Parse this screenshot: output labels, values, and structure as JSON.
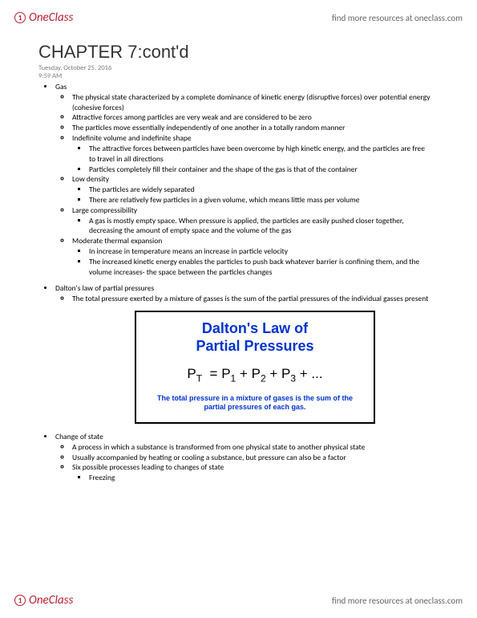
{
  "header": {
    "brand": "OneClass",
    "link_text": "find more resources at oneclass.com"
  },
  "title": "CHAPTER 7:cont'd",
  "meta": {
    "date": "Tuesday, October 25, 2016",
    "time": "9:59 AM"
  },
  "gas": {
    "heading": "Gas",
    "def": "The physical state characterized by a complete dominance of kinetic energy (disruptive forces) over potential energy (cohesive forces)",
    "attractive": "Attractive forces among particles are very weak and are considered to be zero",
    "move": "The particles move essentially independently of one another in a totally random manner",
    "indef_heading": "Indefinite volume and indefinite shape",
    "indef_a": "The attractive forces between particles have been overcome by high kinetic energy, and the particles are free to travel in all directions",
    "indef_b": "Particles completely fill their container and the shape of the gas is that of the container",
    "lowd_heading": "Low density",
    "lowd_a": "The particles are widely separated",
    "lowd_b": "There are relatively few particles in a given volume, which means little mass per volume",
    "comp_heading": "Large compressibility",
    "comp_a": "A gas is mostly empty space. When pressure is applied, the particles are easily pushed closer together, decreasing the amount of empty space and the volume of the gas",
    "therm_heading": "Moderate thermal expansion",
    "therm_a": "In increase in temperature means an increase in particle velocity",
    "therm_b": "The increased kinetic energy enables the particles to push back whatever barrier is confining them, and the volume increases- the space between the particles changes"
  },
  "dalton": {
    "heading": "Dalton's law of partial pressures",
    "desc": "The total pressure exerted by a mixture of gasses is the sum of the partial pressures of the individual gasses present",
    "card": {
      "title_l1": "Dalton's Law of",
      "title_l2": "Partial Pressures",
      "eq_html": "P<sub>T</sub>&nbsp;&nbsp;= P<sub>1</sub> + P<sub>2</sub> + P<sub>3</sub> + ...",
      "caption": "The total pressure in a mixture of gases is the sum of the partial pressures of each gas."
    }
  },
  "change": {
    "heading": "Change of state",
    "a": "A process in which  a substance is transformed from one physical state to another physical state",
    "b": "Usually accompanied by heating or cooling a substance, but pressure can also be a factor",
    "c": "Six possible processes leading to changes of state",
    "c1": "Freezing"
  },
  "colors": {
    "brand": "#b91c2f",
    "link": "#666666",
    "formula_blue": "#0033cc"
  }
}
